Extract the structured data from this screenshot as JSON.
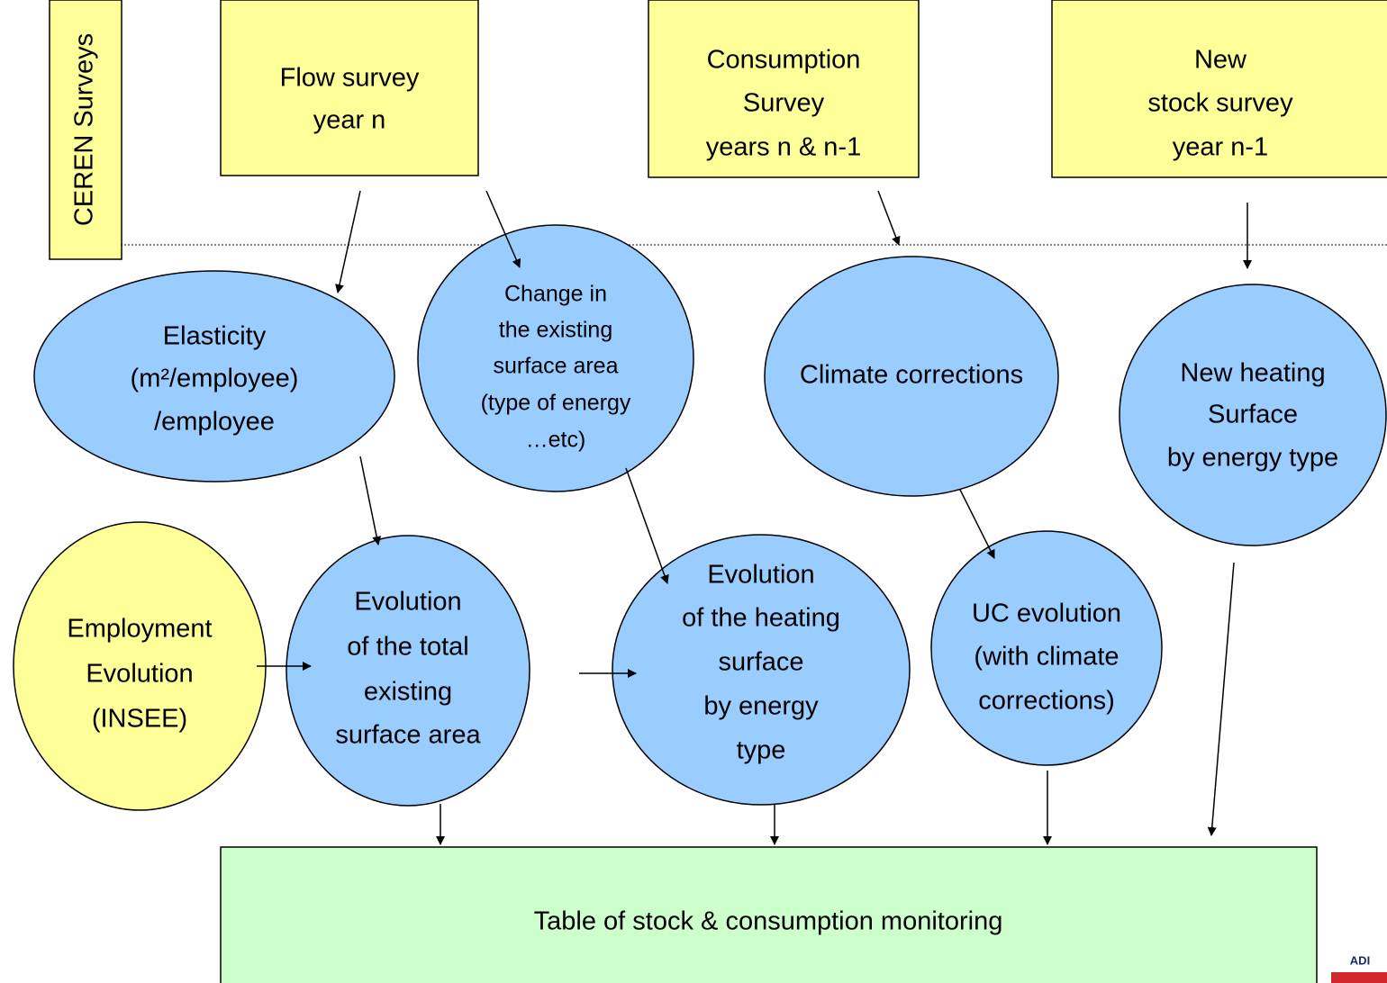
{
  "side_label": "CEREN Surveys",
  "nodes": [
    {
      "lines": [
        "Flow survey",
        "year n"
      ]
    },
    {
      "lines": [
        "Consumption",
        "Survey",
        "years n & n-1"
      ]
    },
    {
      "lines": [
        "New",
        "stock survey",
        "year n-1"
      ]
    },
    {
      "lines": [
        "Elasticity",
        "(m²/employee)",
        "/employee"
      ]
    },
    {
      "lines": [
        "Change in",
        "the existing",
        "surface area",
        "(type of energy",
        "…etc)"
      ]
    },
    {
      "lines": [
        "Climate corrections"
      ]
    },
    {
      "lines": [
        "New heating",
        "Surface",
        "by energy type"
      ]
    },
    {
      "lines": [
        "Employment",
        "Evolution",
        "(INSEE)"
      ]
    },
    {
      "lines": [
        "Evolution",
        "of the total",
        "existing",
        "surface area"
      ]
    },
    {
      "lines": [
        "Evolution",
        "of the heating",
        "surface",
        "by energy",
        "type"
      ]
    },
    {
      "lines": [
        "UC evolution",
        "(with climate",
        "corrections)"
      ]
    },
    {
      "lines": [
        "Table of stock & consumption monitoring"
      ]
    }
  ],
  "logo": "ADI"
}
